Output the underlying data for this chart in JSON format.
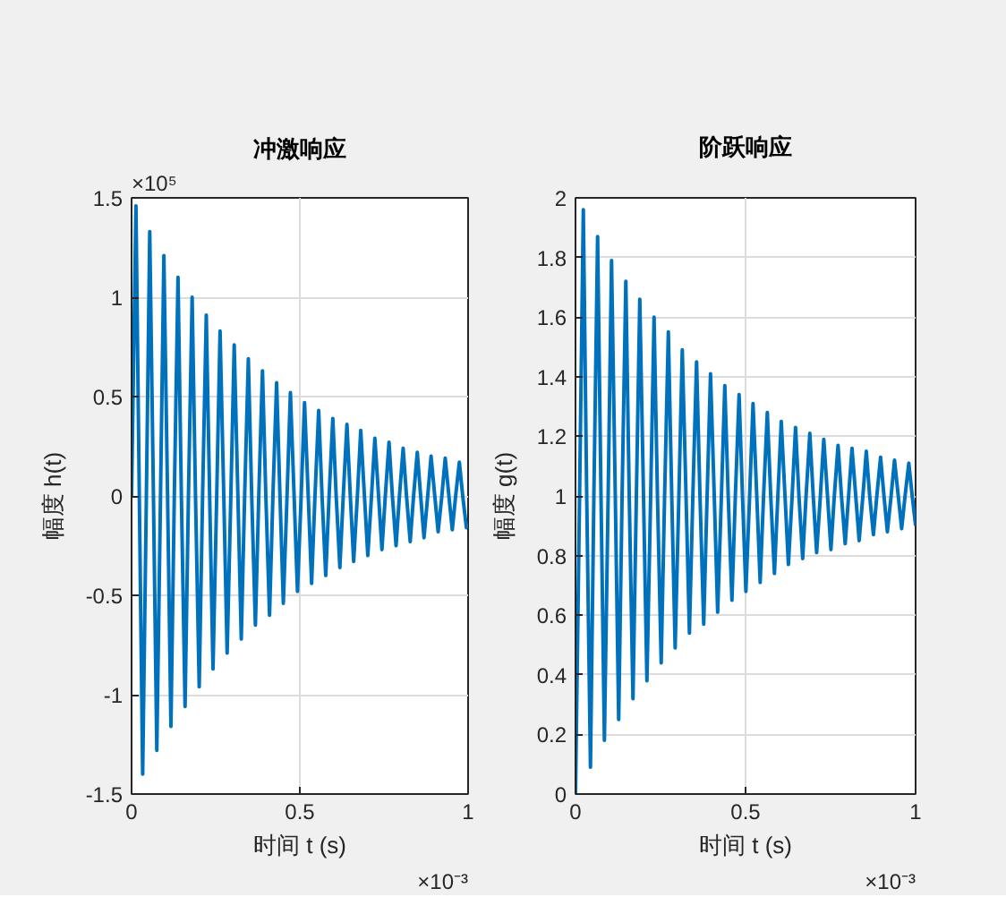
{
  "chart_data": [
    {
      "type": "line",
      "title": "冲激响应",
      "xlabel": "时间 t (s)",
      "ylabel": "幅度 h(t)",
      "annotations": [
        "×10⁻³",
        "×10⁵"
      ],
      "xlim": [
        0,
        1
      ],
      "ylim": [
        -1.5,
        1.5
      ],
      "xticks": [
        0,
        0.5,
        1
      ],
      "yticks": [
        -1.5,
        -1,
        -0.5,
        0,
        0.5,
        1,
        1.5
      ],
      "grid": true,
      "series": [
        {
          "color": "#0072bd",
          "x": [
            0,
            0.013,
            0.023,
            0.033,
            0.044,
            0.054,
            0.065,
            0.075,
            0.086,
            0.096,
            0.107,
            0.117,
            0.127,
            0.138,
            0.148,
            0.159,
            0.169,
            0.18,
            0.19,
            0.201,
            0.211,
            0.222,
            0.232,
            0.242,
            0.253,
            0.263,
            0.274,
            0.284,
            0.295,
            0.305,
            0.316,
            0.326,
            0.336,
            0.347,
            0.357,
            0.368,
            0.378,
            0.389,
            0.399,
            0.41,
            0.42,
            0.431,
            0.441,
            0.451,
            0.462,
            0.472,
            0.483,
            0.493,
            0.504,
            0.514,
            0.525,
            0.535,
            0.545,
            0.556,
            0.566,
            0.577,
            0.587,
            0.598,
            0.608,
            0.619,
            0.629,
            0.64,
            0.65,
            0.66,
            0.671,
            0.681,
            0.692,
            0.702,
            0.713,
            0.723,
            0.734,
            0.744,
            0.754,
            0.765,
            0.775,
            0.786,
            0.796,
            0.807,
            0.817,
            0.828,
            0.838,
            0.849,
            0.859,
            0.869,
            0.88,
            0.89,
            0.901,
            0.911,
            0.922,
            0.932,
            0.943,
            0.953,
            0.963,
            0.974,
            0.984,
            0.995,
            1
          ],
          "values": [
            0,
            1.46,
            0,
            -1.4,
            0,
            1.33,
            0,
            -1.28,
            0,
            1.21,
            0,
            -1.16,
            0,
            1.1,
            0,
            -1.06,
            0,
            1.0,
            0,
            -0.96,
            0,
            0.91,
            0,
            -0.87,
            0,
            0.83,
            0,
            -0.79,
            0,
            0.76,
            0,
            -0.72,
            0,
            0.69,
            0,
            -0.65,
            0,
            0.63,
            0,
            -0.6,
            0,
            0.57,
            0,
            -0.54,
            0,
            0.52,
            0,
            -0.48,
            0,
            0.47,
            0,
            -0.44,
            0,
            0.43,
            0,
            -0.4,
            0,
            0.39,
            0,
            -0.36,
            0,
            0.36,
            0,
            -0.33,
            0,
            0.33,
            0,
            -0.3,
            0,
            0.29,
            0,
            -0.27,
            0,
            0.27,
            0,
            -0.25,
            0,
            0.24,
            0,
            -0.23,
            0,
            0.22,
            0,
            -0.21,
            0,
            0.2,
            0,
            -0.18,
            0,
            0.19,
            0,
            -0.17,
            0,
            0.17,
            0,
            -0.16,
            -0.14
          ]
        }
      ]
    },
    {
      "type": "line",
      "title": "阶跃响应",
      "xlabel": "时间 t (s)",
      "ylabel": "幅度 g(t)",
      "annotations": [
        "×10⁻³"
      ],
      "xlim": [
        0,
        1
      ],
      "ylim": [
        0,
        2
      ],
      "xticks": [
        0,
        0.5,
        1
      ],
      "yticks": [
        0,
        0.2,
        0.4,
        0.6,
        0.8,
        1,
        1.2,
        1.4,
        1.6,
        1.8,
        2
      ],
      "grid": true,
      "series": [
        {
          "color": "#0072bd",
          "x": [
            0,
            0.012,
            0.023,
            0.033,
            0.044,
            0.054,
            0.065,
            0.075,
            0.085,
            0.096,
            0.106,
            0.117,
            0.127,
            0.137,
            0.148,
            0.158,
            0.169,
            0.179,
            0.189,
            0.2,
            0.21,
            0.221,
            0.231,
            0.241,
            0.252,
            0.262,
            0.273,
            0.283,
            0.293,
            0.304,
            0.314,
            0.325,
            0.335,
            0.345,
            0.356,
            0.366,
            0.377,
            0.387,
            0.397,
            0.408,
            0.418,
            0.429,
            0.439,
            0.449,
            0.46,
            0.47,
            0.481,
            0.491,
            0.501,
            0.512,
            0.522,
            0.533,
            0.543,
            0.553,
            0.564,
            0.574,
            0.585,
            0.595,
            0.605,
            0.616,
            0.626,
            0.637,
            0.647,
            0.657,
            0.668,
            0.678,
            0.689,
            0.699,
            0.709,
            0.72,
            0.73,
            0.741,
            0.751,
            0.761,
            0.772,
            0.782,
            0.793,
            0.803,
            0.813,
            0.824,
            0.834,
            0.845,
            0.855,
            0.865,
            0.876,
            0.886,
            0.897,
            0.907,
            0.917,
            0.928,
            0.938,
            0.949,
            0.959,
            0.969,
            0.98,
            0.99,
            1
          ],
          "values": [
            0,
            1,
            1.96,
            1,
            0.09,
            1,
            1.87,
            1,
            0.18,
            1,
            1.79,
            1,
            0.25,
            1,
            1.72,
            1,
            0.32,
            1,
            1.66,
            1,
            0.38,
            1,
            1.6,
            1,
            0.44,
            1,
            1.55,
            1,
            0.49,
            1,
            1.49,
            1,
            0.54,
            1,
            1.45,
            1,
            0.57,
            1,
            1.41,
            1,
            0.61,
            1,
            1.37,
            1,
            0.65,
            1,
            1.34,
            1,
            0.68,
            1,
            1.31,
            1,
            0.71,
            1,
            1.28,
            1,
            0.74,
            1,
            1.25,
            1,
            0.77,
            1,
            1.23,
            1,
            0.79,
            1,
            1.21,
            1,
            0.81,
            1,
            1.19,
            1,
            0.82,
            1,
            1.17,
            1,
            0.84,
            1,
            1.16,
            1,
            0.85,
            1,
            1.15,
            1,
            0.87,
            1,
            1.13,
            1,
            0.88,
            1,
            1.12,
            1,
            0.89,
            1,
            1.11,
            1,
            0.9
          ]
        }
      ]
    }
  ]
}
